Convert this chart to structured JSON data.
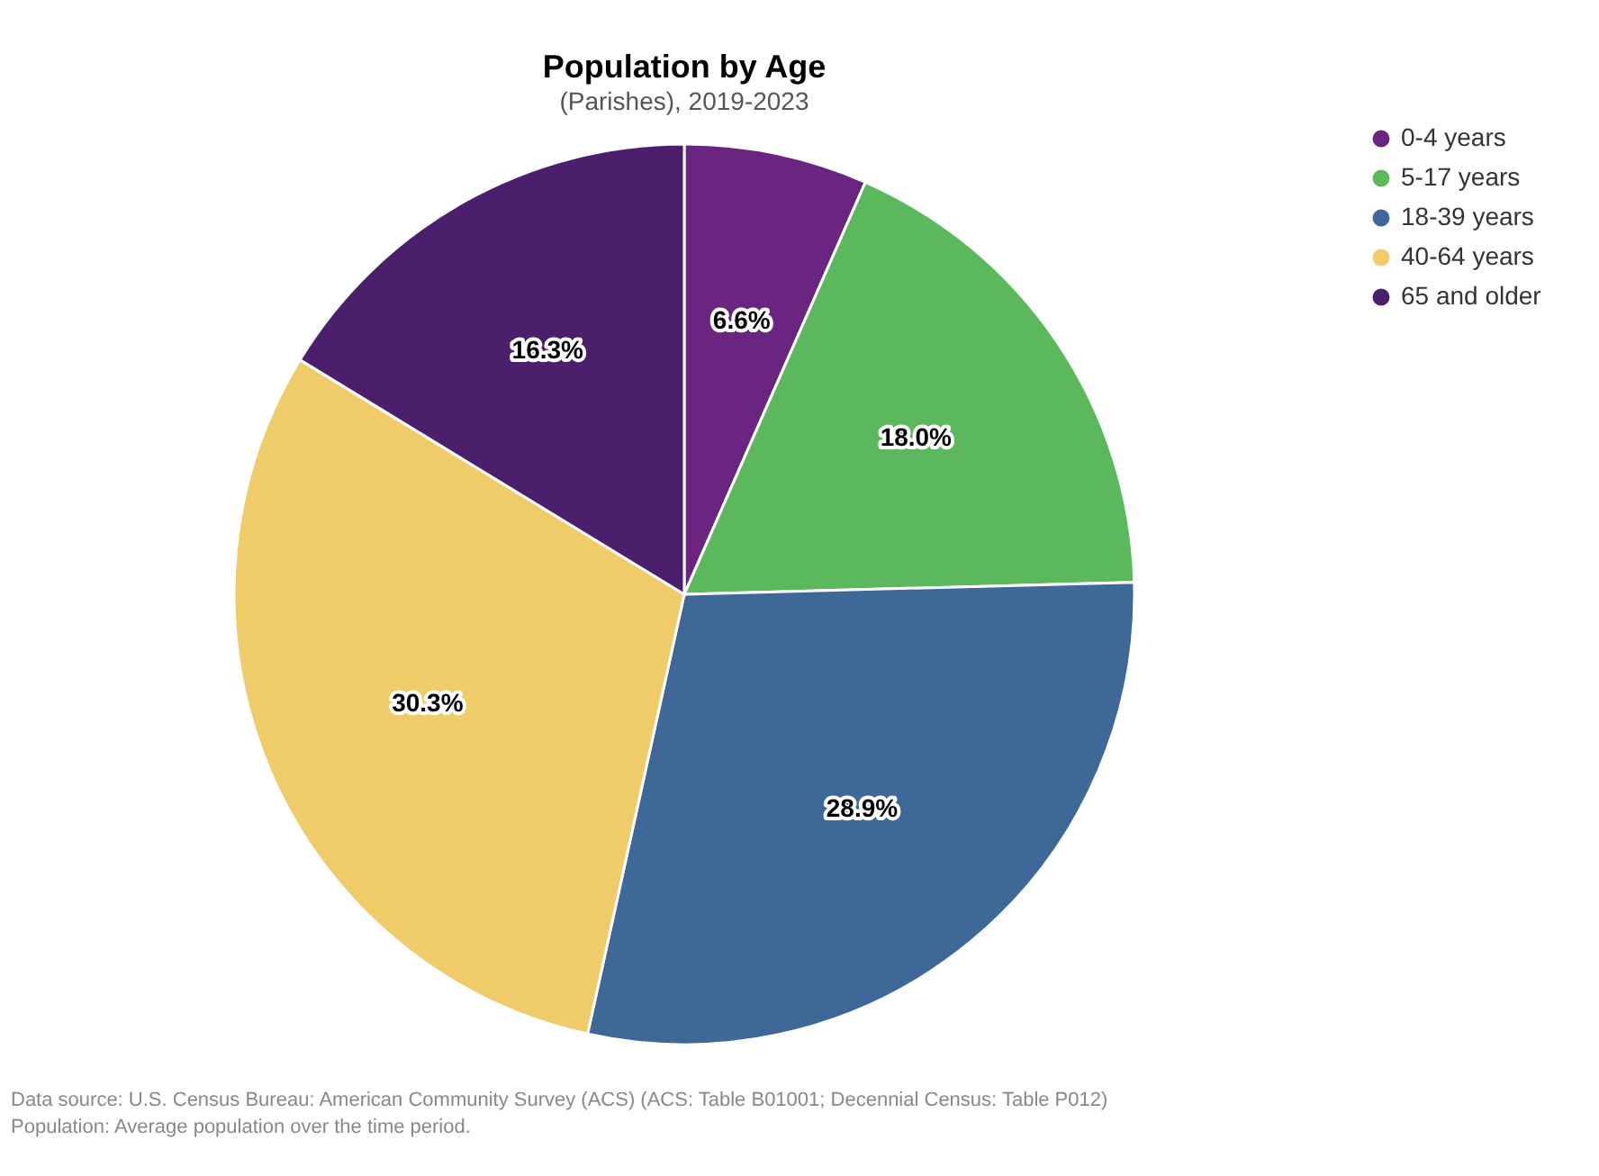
{
  "chart_data": {
    "type": "pie",
    "title": "Population by Age",
    "subtitle": "(Parishes), 2019-2023",
    "categories": [
      "0-4 years",
      "5-17 years",
      "18-39 years",
      "40-64 years",
      "65 and older"
    ],
    "values": [
      6.6,
      18.0,
      28.9,
      30.3,
      16.3
    ],
    "value_labels": [
      "6.6%",
      "18.0%",
      "28.9%",
      "30.3%",
      "16.3%"
    ],
    "colors": [
      "#6a2580",
      "#5cb85c",
      "#3e6897",
      "#f0cb69",
      "#4b1f6b"
    ],
    "legend": "top right",
    "annotations": [
      "Data source: U.S. Census Bureau: American Community Survey (ACS) (ACS: Table B01001; Decennial Census: Table P012)",
      "Population: Average population over the time period."
    ]
  }
}
